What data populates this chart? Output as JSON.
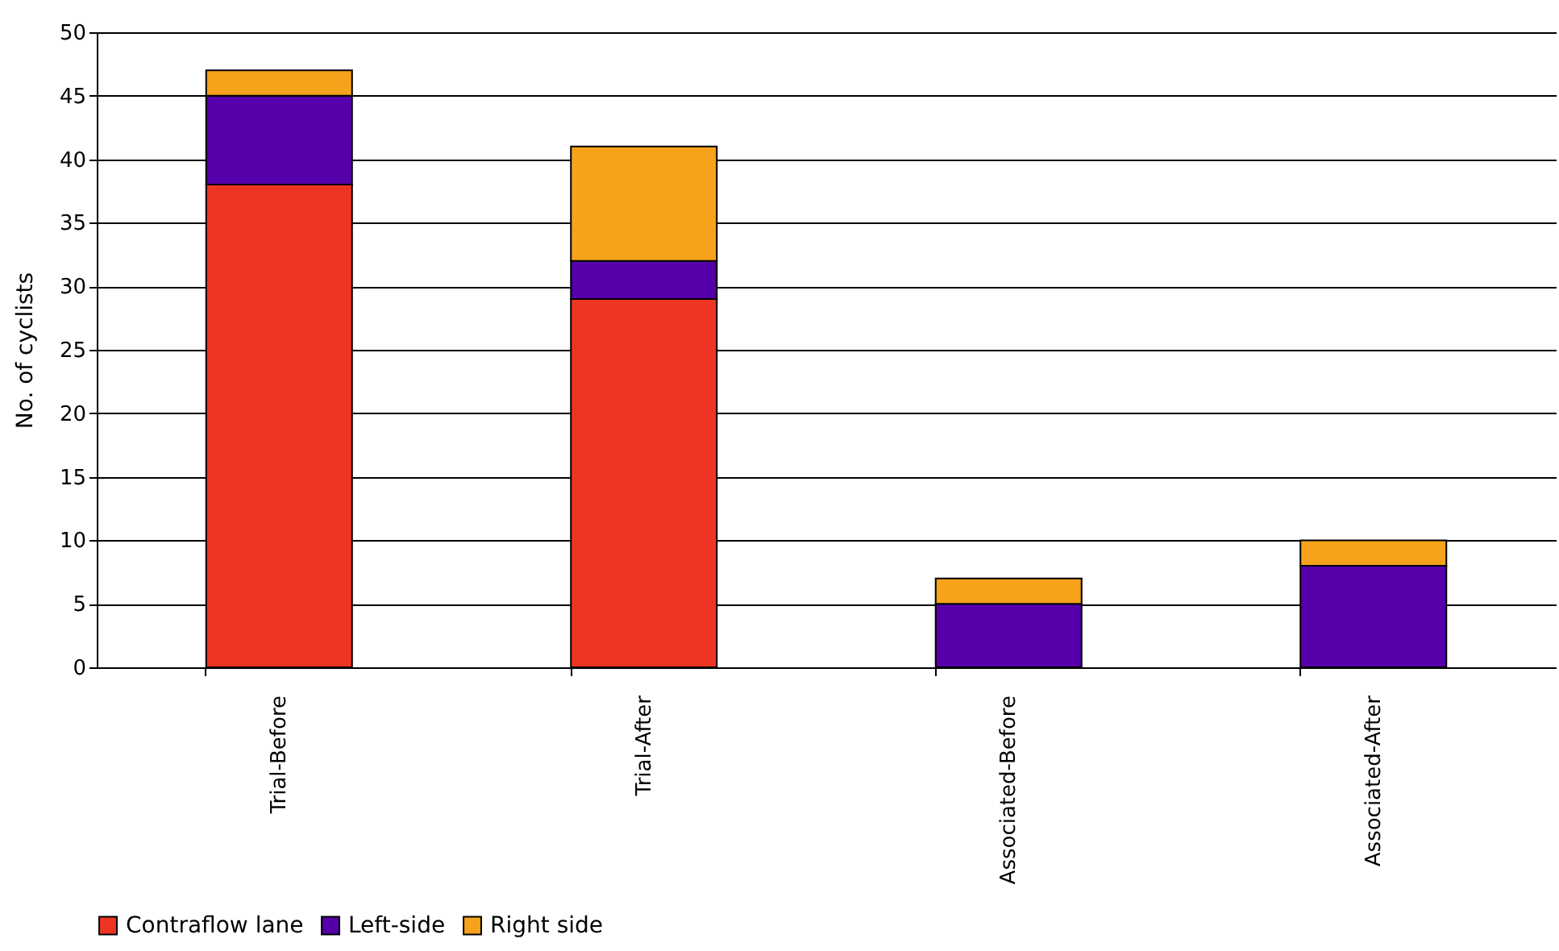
{
  "chart_data": {
    "type": "bar",
    "stacked": true,
    "ylabel": "No. of cyclists",
    "categories": [
      "Trial-Before",
      "Trial-After",
      "Associated-Before",
      "Associated-After"
    ],
    "series": [
      {
        "name": "Contraflow lane",
        "color": "#ee3524",
        "values": [
          38,
          29,
          0,
          0
        ]
      },
      {
        "name": "Left-side",
        "color": "#5500aa",
        "values": [
          7,
          3,
          5,
          8
        ]
      },
      {
        "name": "Right side",
        "color": "#f7a21b",
        "values": [
          2,
          9,
          2,
          2
        ]
      }
    ],
    "ylim": [
      0,
      50
    ],
    "yticks": [
      0,
      5,
      10,
      15,
      20,
      25,
      30,
      35,
      40,
      45,
      50
    ],
    "grid": "y",
    "legend": "bottom"
  }
}
